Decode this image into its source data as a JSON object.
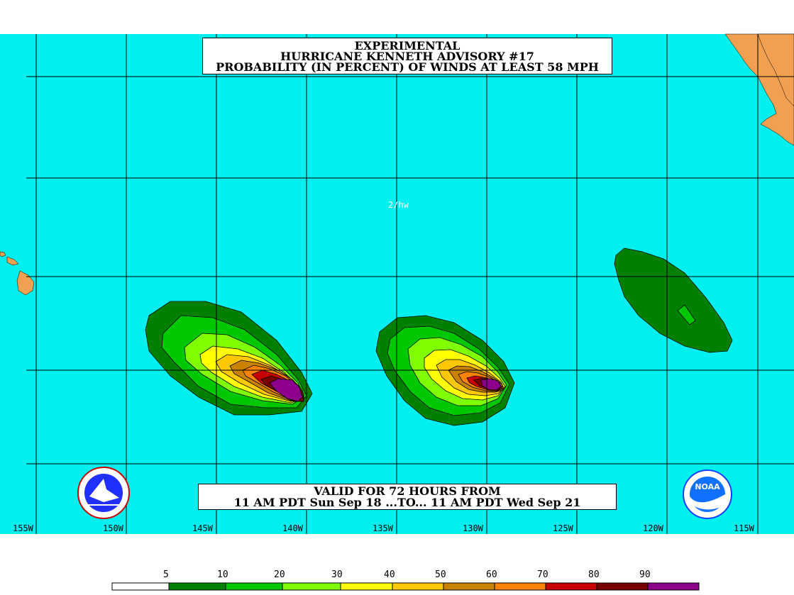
{
  "title": {
    "line1": "EXPERIMENTAL",
    "line2": "HURRICANE KENNETH ADVISORY #17",
    "line3": "PROBABILITY (IN PERCENT) OF WINDS AT LEAST 58 MPH"
  },
  "valid": {
    "line1": "VALID FOR 72 HOURS FROM",
    "line2": "11 AM PDT Sun Sep 18 ...TO... 11 AM PDT Wed Sep 21"
  },
  "watermark": "2/hw",
  "longitudes": [
    "155W",
    "150W",
    "145W",
    "140W",
    "135W",
    "130W",
    "125W",
    "120W",
    "115W"
  ],
  "legend": {
    "labels": [
      "5",
      "10",
      "20",
      "30",
      "40",
      "50",
      "60",
      "70",
      "80",
      "90"
    ],
    "colors": [
      "#ffffff",
      "#008000",
      "#00c800",
      "#80ff00",
      "#ffff00",
      "#ffc800",
      "#c88200",
      "#ff8200",
      "#c80000",
      "#780000",
      "#8c008c"
    ]
  },
  "colors": {
    "ocean": "#00f0f0",
    "land": "#f0a050",
    "grid": "#000000"
  },
  "logos": {
    "left": "nws-logo",
    "right": "noaa-logo",
    "right_text": "NOAA"
  }
}
